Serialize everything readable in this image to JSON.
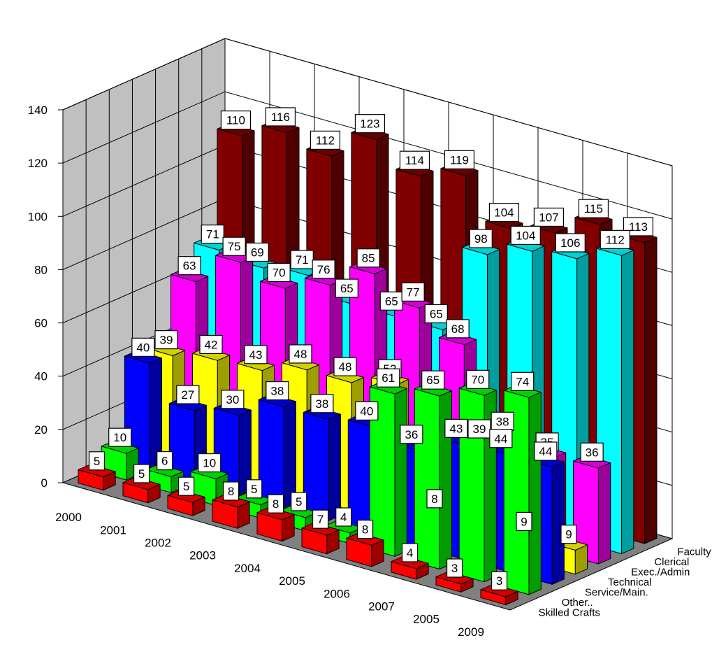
{
  "chart_data": {
    "type": "bar",
    "title": "",
    "xlabel": "",
    "ylabel": "",
    "ylim": [
      0,
      140
    ],
    "y_ticks": [
      "0",
      "20",
      "40",
      "60",
      "80",
      "100",
      "120",
      "140"
    ],
    "grid": true,
    "categories": [
      "2000",
      "2001",
      "2002",
      "2003",
      "2004",
      "2005",
      "2006",
      "2007",
      "2005",
      "2009"
    ],
    "series": [
      {
        "name": "Skilled Crafts",
        "color": "#ff0000",
        "values": [
          5,
          5,
          5,
          8,
          8,
          7,
          8,
          4,
          3,
          3
        ]
      },
      {
        "name": "Other..",
        "color": "#00ff00",
        "values": [
          10,
          6,
          10,
          5,
          5,
          4,
          61,
          65,
          70,
          74
        ]
      },
      {
        "name": "Service/Main.",
        "color": "#0000ff",
        "values": [
          40,
          27,
          30,
          38,
          38,
          40,
          36,
          43,
          44,
          44
        ]
      },
      {
        "name": "Technical",
        "color": "#ffff00",
        "values": [
          39,
          42,
          43,
          48,
          48,
          52,
          8,
          39,
          9,
          9
        ]
      },
      {
        "name": "Exec./Admin",
        "color": "#ff00ff",
        "values": [
          63,
          75,
          70,
          76,
          85,
          77,
          68,
          38,
          35,
          36
        ]
      },
      {
        "name": "Clerical",
        "color": "#00ffff",
        "values": [
          71,
          69,
          71,
          65,
          65,
          65,
          98,
          104,
          106,
          112
        ]
      },
      {
        "name": "Faculty",
        "color": "#800000",
        "values": [
          110,
          116,
          112,
          123,
          114,
          119,
          104,
          107,
          115,
          113
        ]
      }
    ],
    "value_labels": [
      [
        "5",
        "5",
        "5",
        "8",
        "8",
        "7",
        "8",
        "4",
        "3",
        "3"
      ],
      [
        "10",
        "6",
        "10",
        "5",
        "5",
        "4",
        "61",
        "65",
        "70",
        "74"
      ],
      [
        "40",
        "27",
        "30",
        "38",
        "38",
        "40",
        "36",
        "43",
        "44",
        "44"
      ],
      [
        "39",
        "42",
        "43",
        "48",
        "48",
        "52",
        "8",
        "39",
        "9",
        "9"
      ],
      [
        "63",
        "75",
        "70",
        "76",
        "85",
        "77",
        "68",
        "38",
        "35",
        "36"
      ],
      [
        "71",
        "69",
        "71",
        "65",
        "65",
        "65",
        "98",
        "104",
        "106",
        "112"
      ],
      [
        "110",
        "116",
        "112",
        "123",
        "114",
        "119",
        "104",
        "107",
        "115",
        "113"
      ]
    ],
    "legend_position": "depth-axis"
  }
}
